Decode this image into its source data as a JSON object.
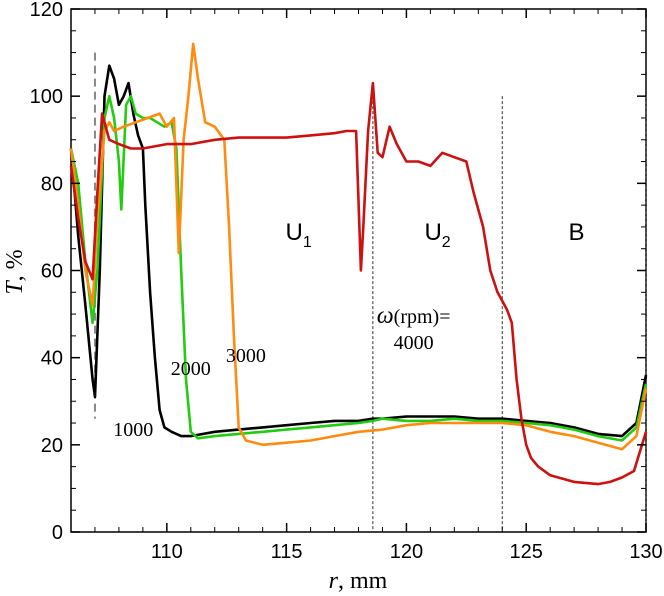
{
  "chart_data": {
    "type": "line",
    "title": "",
    "xlabel_var": "r",
    "xlabel_unit": ", mm",
    "ylabel_var": "T",
    "ylabel_unit": ", %",
    "xlim": [
      106,
      130
    ],
    "ylim": [
      0,
      120
    ],
    "xticks": [
      110,
      115,
      120,
      125,
      130
    ],
    "yticks": [
      0,
      20,
      40,
      60,
      80,
      100,
      120
    ],
    "xtick_labels": [
      "110",
      "115",
      "120",
      "125",
      "130"
    ],
    "ytick_labels": [
      "0",
      "20",
      "40",
      "60",
      "80",
      "100",
      "120"
    ],
    "vlines_gray": [
      107.0
    ],
    "vlines_dotted": [
      118.6,
      124.0,
      130.0
    ],
    "regions": [
      {
        "label_main": "U",
        "label_sub": "1",
        "x": 115.5,
        "y": 67
      },
      {
        "label_main": "U",
        "label_sub": "2",
        "x": 121.3,
        "y": 67
      },
      {
        "label_main": "B",
        "label_sub": "",
        "x": 127.1,
        "y": 67
      }
    ],
    "annotations": [
      {
        "text": "1000",
        "x": 108.6,
        "y": 22
      },
      {
        "text": "2000",
        "x": 111.0,
        "y": 36
      },
      {
        "text": "3000",
        "x": 113.3,
        "y": 39
      },
      {
        "text": "(rpm)=",
        "prefix": "ω",
        "x": 120.3,
        "y": 48
      },
      {
        "text": "4000",
        "x": 120.3,
        "y": 42
      }
    ],
    "series": [
      {
        "name": "1000",
        "color": "#000000",
        "x": [
          106.0,
          106.3,
          106.6,
          106.9,
          107.0,
          107.2,
          107.4,
          107.6,
          107.8,
          108.0,
          108.2,
          108.4,
          108.6,
          108.8,
          109.0,
          109.1,
          109.3,
          109.5,
          109.7,
          109.9,
          110.2,
          110.6,
          111.0,
          112.0,
          113.0,
          114.0,
          115.0,
          116.0,
          117.0,
          118.0,
          118.6,
          119.0,
          120.0,
          121.0,
          122.0,
          123.0,
          124.0,
          125.0,
          126.0,
          127.0,
          128.0,
          129.0,
          129.6,
          130.0
        ],
        "y": [
          88,
          68,
          52,
          35,
          31,
          60,
          100,
          107,
          104,
          98,
          100,
          103,
          96,
          91,
          88,
          75,
          55,
          40,
          28,
          24,
          23,
          22,
          22,
          23,
          23.5,
          24,
          24.5,
          25,
          25.5,
          25.5,
          26,
          26,
          26.5,
          26.5,
          26.5,
          26,
          26,
          25.5,
          25,
          24,
          22.5,
          22,
          25,
          36
        ]
      },
      {
        "name": "2000",
        "color": "#22cc11",
        "x": [
          106.0,
          106.3,
          106.6,
          106.9,
          107.1,
          107.4,
          107.6,
          107.8,
          108.0,
          108.1,
          108.3,
          108.5,
          108.7,
          109.0,
          109.3,
          109.6,
          109.9,
          110.2,
          110.4,
          110.6,
          110.8,
          111.0,
          111.3,
          112.0,
          113.0,
          114.0,
          115.0,
          116.0,
          117.0,
          118.0,
          118.6,
          119.0,
          120.0,
          121.0,
          122.0,
          123.0,
          124.0,
          125.0,
          126.0,
          127.0,
          128.0,
          129.0,
          129.6,
          130.0
        ],
        "y": [
          88,
          80,
          62,
          48,
          60,
          95,
          100,
          95,
          85,
          74,
          98,
          100,
          96,
          95,
          95,
          94,
          93,
          94,
          88,
          60,
          35,
          23,
          21.5,
          22,
          22.5,
          23,
          23.5,
          24,
          24.5,
          25,
          25.5,
          26,
          25.5,
          25.5,
          26,
          25.5,
          25.5,
          25,
          24.5,
          23.5,
          22,
          21,
          24,
          34
        ]
      },
      {
        "name": "3000",
        "color": "#ff8c10",
        "x": [
          106.0,
          106.3,
          106.6,
          106.9,
          107.1,
          107.4,
          107.6,
          107.8,
          108.2,
          108.7,
          109.2,
          109.7,
          110.0,
          110.3,
          110.5,
          110.7,
          110.9,
          111.1,
          111.3,
          111.6,
          112.0,
          112.4,
          112.6,
          112.8,
          113.0,
          113.3,
          114.0,
          115.0,
          116.0,
          117.0,
          118.0,
          119.0,
          120.0,
          121.0,
          122.0,
          123.0,
          124.0,
          125.0,
          126.0,
          127.0,
          128.0,
          129.0,
          129.6,
          130.0
        ],
        "y": [
          88,
          75,
          60,
          52,
          72,
          92,
          94,
          92,
          93,
          94,
          95,
          96,
          93,
          95,
          64,
          90,
          100,
          112,
          104,
          94,
          93,
          90,
          70,
          45,
          24,
          21,
          20,
          20.5,
          21,
          22,
          23,
          23.5,
          24.5,
          25,
          25,
          25,
          25,
          24.5,
          23,
          22,
          20.5,
          19,
          22,
          33
        ]
      },
      {
        "name": "4000",
        "color": "#cc1111",
        "x": [
          106.0,
          106.3,
          106.6,
          106.9,
          107.1,
          107.3,
          107.6,
          108.0,
          108.5,
          109.0,
          110.0,
          111.0,
          112.0,
          113.0,
          114.0,
          115.0,
          116.0,
          117.0,
          117.5,
          117.9,
          118.1,
          118.2,
          118.4,
          118.6,
          118.8,
          119.0,
          119.3,
          119.6,
          120.0,
          120.5,
          121.0,
          121.5,
          122.0,
          122.5,
          122.8,
          123.2,
          123.5,
          123.8,
          124.0,
          124.2,
          124.4,
          124.6,
          124.8,
          125.0,
          125.2,
          125.5,
          126.0,
          127.0,
          128.0,
          128.5,
          129.0,
          129.5,
          130.0
        ],
        "y": [
          84,
          72,
          62,
          58,
          78,
          96,
          90,
          89,
          88,
          88,
          89,
          89,
          90,
          90.5,
          90.5,
          90.5,
          91,
          91.5,
          92,
          92,
          60,
          70,
          92,
          103,
          87,
          86,
          93,
          89,
          85,
          85,
          84,
          87,
          86,
          85,
          78,
          70,
          60,
          55,
          53,
          51,
          48,
          35,
          26,
          20,
          17,
          15,
          13,
          11.5,
          11,
          11.5,
          12.5,
          14,
          23
        ]
      }
    ]
  }
}
